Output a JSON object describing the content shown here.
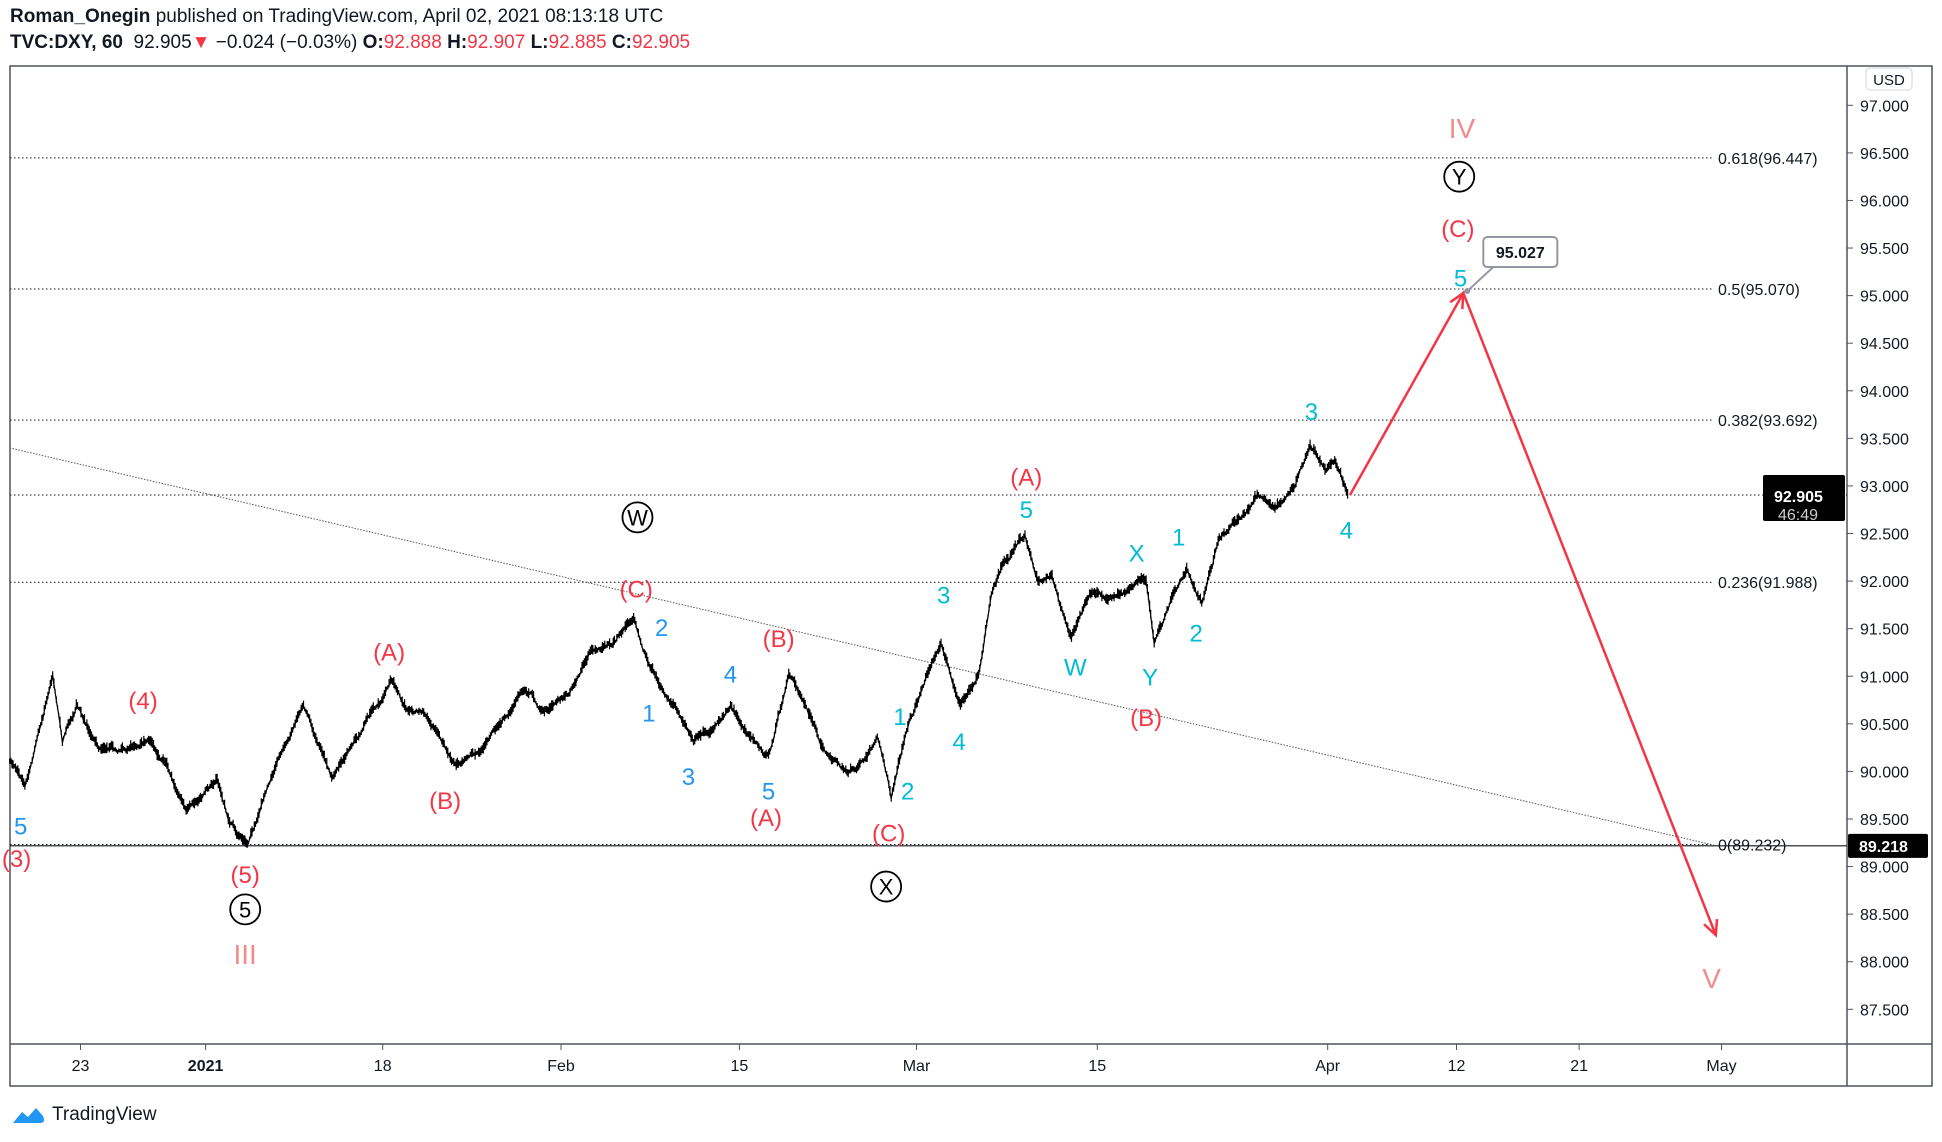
{
  "header": {
    "author": "Roman_Onegin",
    "published": "published on TradingView.com, April 02, 2021 08:13:18 UTC",
    "symbol": "TVC:DXY, 60",
    "last": "92.905",
    "change": "−0.024 (−0.03%)",
    "o_label": "O:",
    "o": "92.888",
    "h_label": "H:",
    "h": "92.907",
    "l_label": "L:",
    "l": "92.885",
    "c_label": "C:",
    "c": "92.905"
  },
  "footer": {
    "brand": "TradingView"
  },
  "colors": {
    "red": "#f23645",
    "blue": "#2196f3",
    "cyan": "#00bcd4",
    "pink": "#f28c8c",
    "black": "#131722",
    "forecast": "#f23645"
  },
  "chart_data": {
    "type": "line",
    "title": "TVC:DXY, 60",
    "currency": "USD",
    "x_unit": "days since Dec 23, 2020",
    "ylim": [
      87.2,
      97.25
    ],
    "y_ticks": [
      "97.000",
      "96.500",
      "96.000",
      "95.500",
      "95.000",
      "94.500",
      "94.000",
      "93.500",
      "93.000",
      "92.500",
      "92.000",
      "91.500",
      "91.000",
      "90.500",
      "90.000",
      "89.500",
      "89.000",
      "88.500",
      "88.000",
      "87.500"
    ],
    "x_ticks": [
      {
        "label": "23",
        "day": 0
      },
      {
        "label": "2021",
        "day": 9
      },
      {
        "label": "18",
        "day": 26
      },
      {
        "label": "Feb",
        "day": 40
      },
      {
        "label": "15",
        "day": 54
      },
      {
        "label": "Mar",
        "day": 68
      },
      {
        "label": "15",
        "day": 82
      },
      {
        "label": "Apr",
        "day": 99
      },
      {
        "label": "12",
        "day": 110
      },
      {
        "label": "21",
        "day": 119
      },
      {
        "label": "May",
        "day": 129
      }
    ],
    "price_series": [
      [
        -5.1,
        90.1
      ],
      [
        -4.0,
        89.84
      ],
      [
        -2.0,
        91.01
      ],
      [
        -1.3,
        90.3
      ],
      [
        -0.3,
        90.69
      ],
      [
        1.3,
        90.23
      ],
      [
        4.9,
        90.32
      ],
      [
        7.6,
        89.58
      ],
      [
        10.1,
        89.91
      ],
      [
        11.3,
        89.45
      ],
      [
        13.0,
        89.23
      ],
      [
        14.8,
        89.78
      ],
      [
        18.4,
        90.69
      ],
      [
        21.1,
        89.93
      ],
      [
        23.7,
        90.36
      ],
      [
        26.6,
        90.95
      ],
      [
        28.0,
        90.63
      ],
      [
        29.5,
        90.56
      ],
      [
        31.4,
        90.1
      ],
      [
        33.9,
        90.23
      ],
      [
        35.3,
        90.49
      ],
      [
        36.8,
        90.82
      ],
      [
        38.7,
        90.62
      ],
      [
        40.7,
        90.82
      ],
      [
        42.4,
        91.27
      ],
      [
        44.1,
        91.34
      ],
      [
        45.7,
        91.6
      ],
      [
        47.0,
        91.08
      ],
      [
        48.9,
        90.69
      ],
      [
        50.4,
        90.3
      ],
      [
        51.9,
        90.43
      ],
      [
        53.3,
        90.69
      ],
      [
        54.8,
        90.36
      ],
      [
        56.3,
        90.17
      ],
      [
        57.9,
        91.01
      ],
      [
        59.2,
        90.69
      ],
      [
        60.7,
        90.23
      ],
      [
        62.6,
        89.97
      ],
      [
        64.1,
        90.14
      ],
      [
        64.9,
        90.36
      ],
      [
        66.0,
        89.71
      ],
      [
        67.5,
        90.56
      ],
      [
        68.8,
        91.01
      ],
      [
        69.9,
        91.34
      ],
      [
        71.4,
        90.69
      ],
      [
        72.8,
        91.01
      ],
      [
        73.8,
        91.86
      ],
      [
        74.7,
        92.18
      ],
      [
        76.4,
        92.48
      ],
      [
        77.4,
        91.99
      ],
      [
        78.5,
        92.05
      ],
      [
        80.0,
        91.4
      ],
      [
        81.4,
        91.86
      ],
      [
        82.8,
        91.79
      ],
      [
        85.6,
        91.99
      ],
      [
        86.2,
        91.34
      ],
      [
        87.4,
        91.79
      ],
      [
        88.6,
        92.12
      ],
      [
        89.7,
        91.76
      ],
      [
        91.0,
        92.45
      ],
      [
        92.4,
        92.64
      ],
      [
        93.8,
        92.9
      ],
      [
        95.2,
        92.77
      ],
      [
        96.5,
        92.97
      ],
      [
        97.7,
        93.42
      ],
      [
        98.8,
        93.16
      ],
      [
        99.6,
        93.26
      ],
      [
        100.7,
        92.905
      ]
    ],
    "forecast_path": [
      [
        100.9,
        92.905
      ],
      [
        110.5,
        95.027
      ],
      [
        128.6,
        88.28
      ]
    ],
    "forecast_target": "95.027",
    "trendline": [
      [
        -5.1,
        93.4
      ],
      [
        128.6,
        89.22
      ]
    ],
    "fib_levels": [
      {
        "label": "0.618(96.447)",
        "price": 96.447
      },
      {
        "label": "0.5(95.070)",
        "price": 95.07
      },
      {
        "label": "0.382(93.692)",
        "price": 93.692
      },
      {
        "label": "0.236(91.988)",
        "price": 91.988
      },
      {
        "label": "0(89.232)",
        "price": 89.232
      }
    ],
    "current_price": {
      "price": 92.905,
      "label": "92.905",
      "countdown": "46:49"
    },
    "low_line": {
      "price": 89.218,
      "label": "89.218"
    },
    "wave_labels": [
      {
        "t": "5",
        "c": "blue",
        "d": -4.3,
        "p": 89.43
      },
      {
        "t": "(3)",
        "c": "red",
        "d": -4.6,
        "p": 89.09
      },
      {
        "t": "(4)",
        "c": "red",
        "d": 4.5,
        "p": 90.75
      },
      {
        "t": "(A)",
        "c": "red",
        "d": 26.5,
        "p": 91.26
      },
      {
        "t": "(B)",
        "c": "red",
        "d": 30.9,
        "p": 89.7
      },
      {
        "t": "(5)",
        "c": "red",
        "d": 12.8,
        "p": 88.92
      },
      {
        "t": "5",
        "c": "black",
        "circ": true,
        "d": 12.8,
        "p": 88.55
      },
      {
        "t": "III",
        "c": "pink",
        "d": 12.8,
        "p": 88.07
      },
      {
        "t": "(C)",
        "c": "red",
        "d": 45.9,
        "p": 91.92
      },
      {
        "t": "W",
        "c": "black",
        "circ": true,
        "d": 46.0,
        "p": 92.67
      },
      {
        "t": "2",
        "c": "blue",
        "d": 47.9,
        "p": 91.52
      },
      {
        "t": "1",
        "c": "blue",
        "d": 46.9,
        "p": 90.62
      },
      {
        "t": "4",
        "c": "blue",
        "d": 53.3,
        "p": 91.03
      },
      {
        "t": "3",
        "c": "blue",
        "d": 50.0,
        "p": 89.95
      },
      {
        "t": "(B)",
        "c": "red",
        "d": 57.1,
        "p": 91.4
      },
      {
        "t": "5",
        "c": "blue",
        "d": 56.3,
        "p": 89.8
      },
      {
        "t": "(A)",
        "c": "red",
        "d": 56.1,
        "p": 89.52
      },
      {
        "t": "2",
        "c": "cyan",
        "d": 67.3,
        "p": 89.8
      },
      {
        "t": "(C)",
        "c": "red",
        "d": 65.8,
        "p": 89.36
      },
      {
        "t": "X",
        "c": "black",
        "circ": true,
        "d": 65.6,
        "p": 88.79
      },
      {
        "t": "1",
        "c": "cyan",
        "d": 66.7,
        "p": 90.58
      },
      {
        "t": "4",
        "c": "cyan",
        "d": 71.3,
        "p": 90.32
      },
      {
        "t": "3",
        "c": "cyan",
        "d": 70.1,
        "p": 91.86
      },
      {
        "t": "(A)",
        "c": "red",
        "d": 76.5,
        "p": 93.1
      },
      {
        "t": "5",
        "c": "cyan",
        "d": 76.5,
        "p": 92.76
      },
      {
        "t": "W",
        "c": "cyan",
        "d": 80.3,
        "p": 91.1
      },
      {
        "t": "X",
        "c": "cyan",
        "d": 84.9,
        "p": 92.3
      },
      {
        "t": "1",
        "c": "cyan",
        "d": 88.0,
        "p": 92.47
      },
      {
        "t": "Y",
        "c": "cyan",
        "d": 85.9,
        "p": 91.0
      },
      {
        "t": "2",
        "c": "cyan",
        "d": 89.3,
        "p": 91.46
      },
      {
        "t": "(B)",
        "c": "red",
        "d": 85.6,
        "p": 90.57
      },
      {
        "t": "3",
        "c": "cyan",
        "d": 97.8,
        "p": 93.79
      },
      {
        "t": "4",
        "c": "cyan",
        "d": 100.6,
        "p": 92.54
      },
      {
        "t": "IV",
        "c": "pink",
        "d": 110.4,
        "p": 96.75
      },
      {
        "t": "Y",
        "c": "black",
        "circ": true,
        "d": 110.2,
        "p": 96.25
      },
      {
        "t": "(C)",
        "c": "red",
        "d": 110.1,
        "p": 95.71
      },
      {
        "t": "5",
        "c": "cyan",
        "d": 110.3,
        "p": 95.19
      },
      {
        "t": "V",
        "c": "pink",
        "d": 128.3,
        "p": 87.82
      }
    ]
  }
}
